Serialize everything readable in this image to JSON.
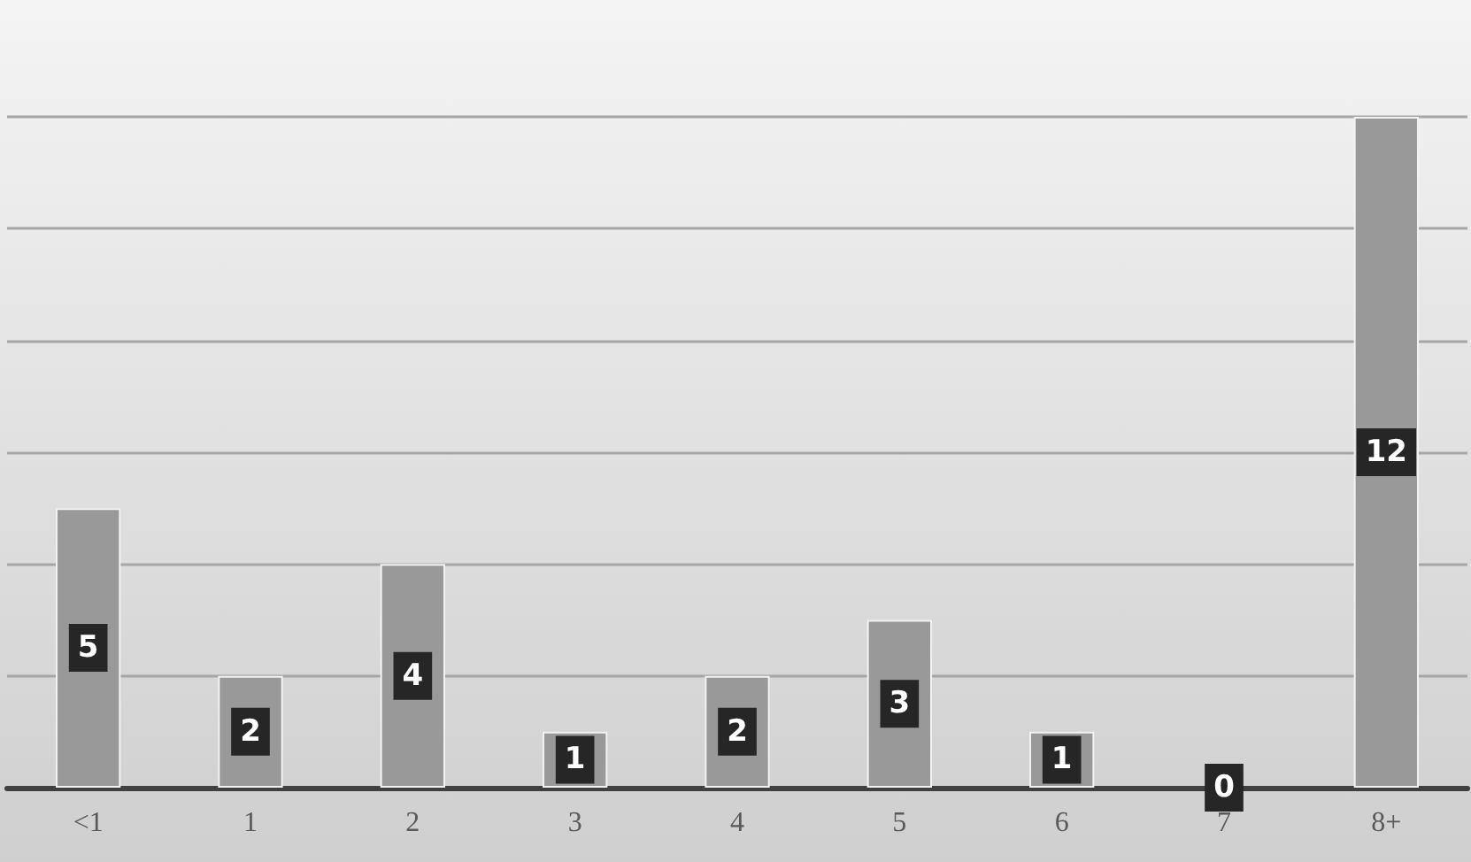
{
  "chart_data": {
    "type": "bar",
    "categories": [
      "<1",
      "1",
      "2",
      "3",
      "4",
      "5",
      "6",
      "7",
      "8+"
    ],
    "values": [
      5,
      2,
      4,
      1,
      2,
      3,
      1,
      0,
      12
    ],
    "color": "#999999",
    "grid": "y",
    "tick_labels": "x",
    "data_labels": true
  }
}
